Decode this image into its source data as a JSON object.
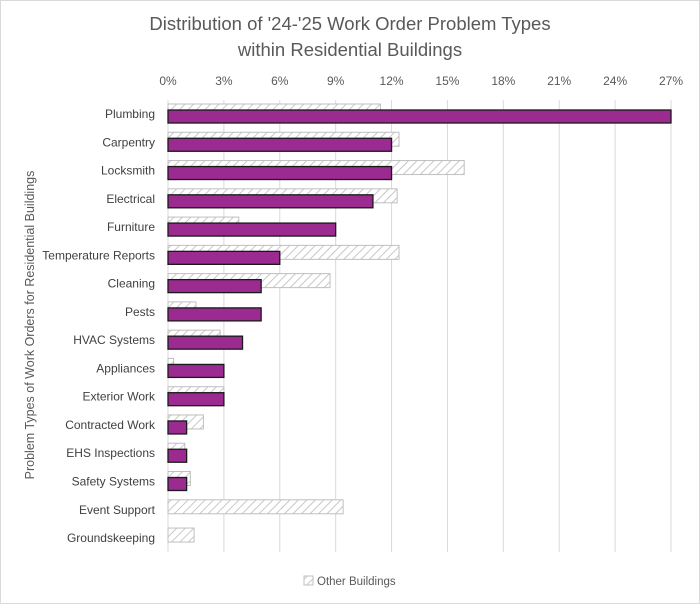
{
  "chart_data": {
    "type": "bar",
    "orientation": "horizontal",
    "title": "Distribution of '24-'25 Work Order Problem Types within Residential Buildings",
    "title_lines": [
      "Distribution of '24-'25 Work Order Problem Types",
      "within Residential Buildings"
    ],
    "xlabel": "",
    "ylabel": "Problem Types of Work Orders for Residential Buildings",
    "xlim": [
      0,
      27
    ],
    "x_ticks": [
      "0%",
      "3%",
      "6%",
      "9%",
      "12%",
      "15%",
      "18%",
      "21%",
      "24%",
      "27%"
    ],
    "x_axis_position": "top",
    "grid": true,
    "legend_position": "bottom",
    "categories": [
      "Plumbing",
      "Carpentry",
      "Locksmith",
      "Electrical",
      "Furniture",
      "Temperature Reports",
      "Cleaning",
      "Pests",
      "HVAC Systems",
      "Appliances",
      "Exterior Work",
      "Contracted Work",
      "EHS Inspections",
      "Safety Systems",
      "Event Support",
      "Groundskeeping"
    ],
    "series": [
      {
        "name": "Other Buildings",
        "color": "#bfbfbf",
        "pattern": "diagonal-hatch",
        "values": [
          11.4,
          12.4,
          15.9,
          12.3,
          3.8,
          12.4,
          8.7,
          1.5,
          2.8,
          0.3,
          3.0,
          1.9,
          0.9,
          1.2,
          9.4,
          1.4
        ]
      },
      {
        "color": "#9b2a91",
        "values": [
          27,
          12,
          12,
          11,
          9,
          6,
          5,
          5,
          4,
          3,
          3,
          1,
          1,
          1,
          0,
          0
        ]
      }
    ]
  }
}
